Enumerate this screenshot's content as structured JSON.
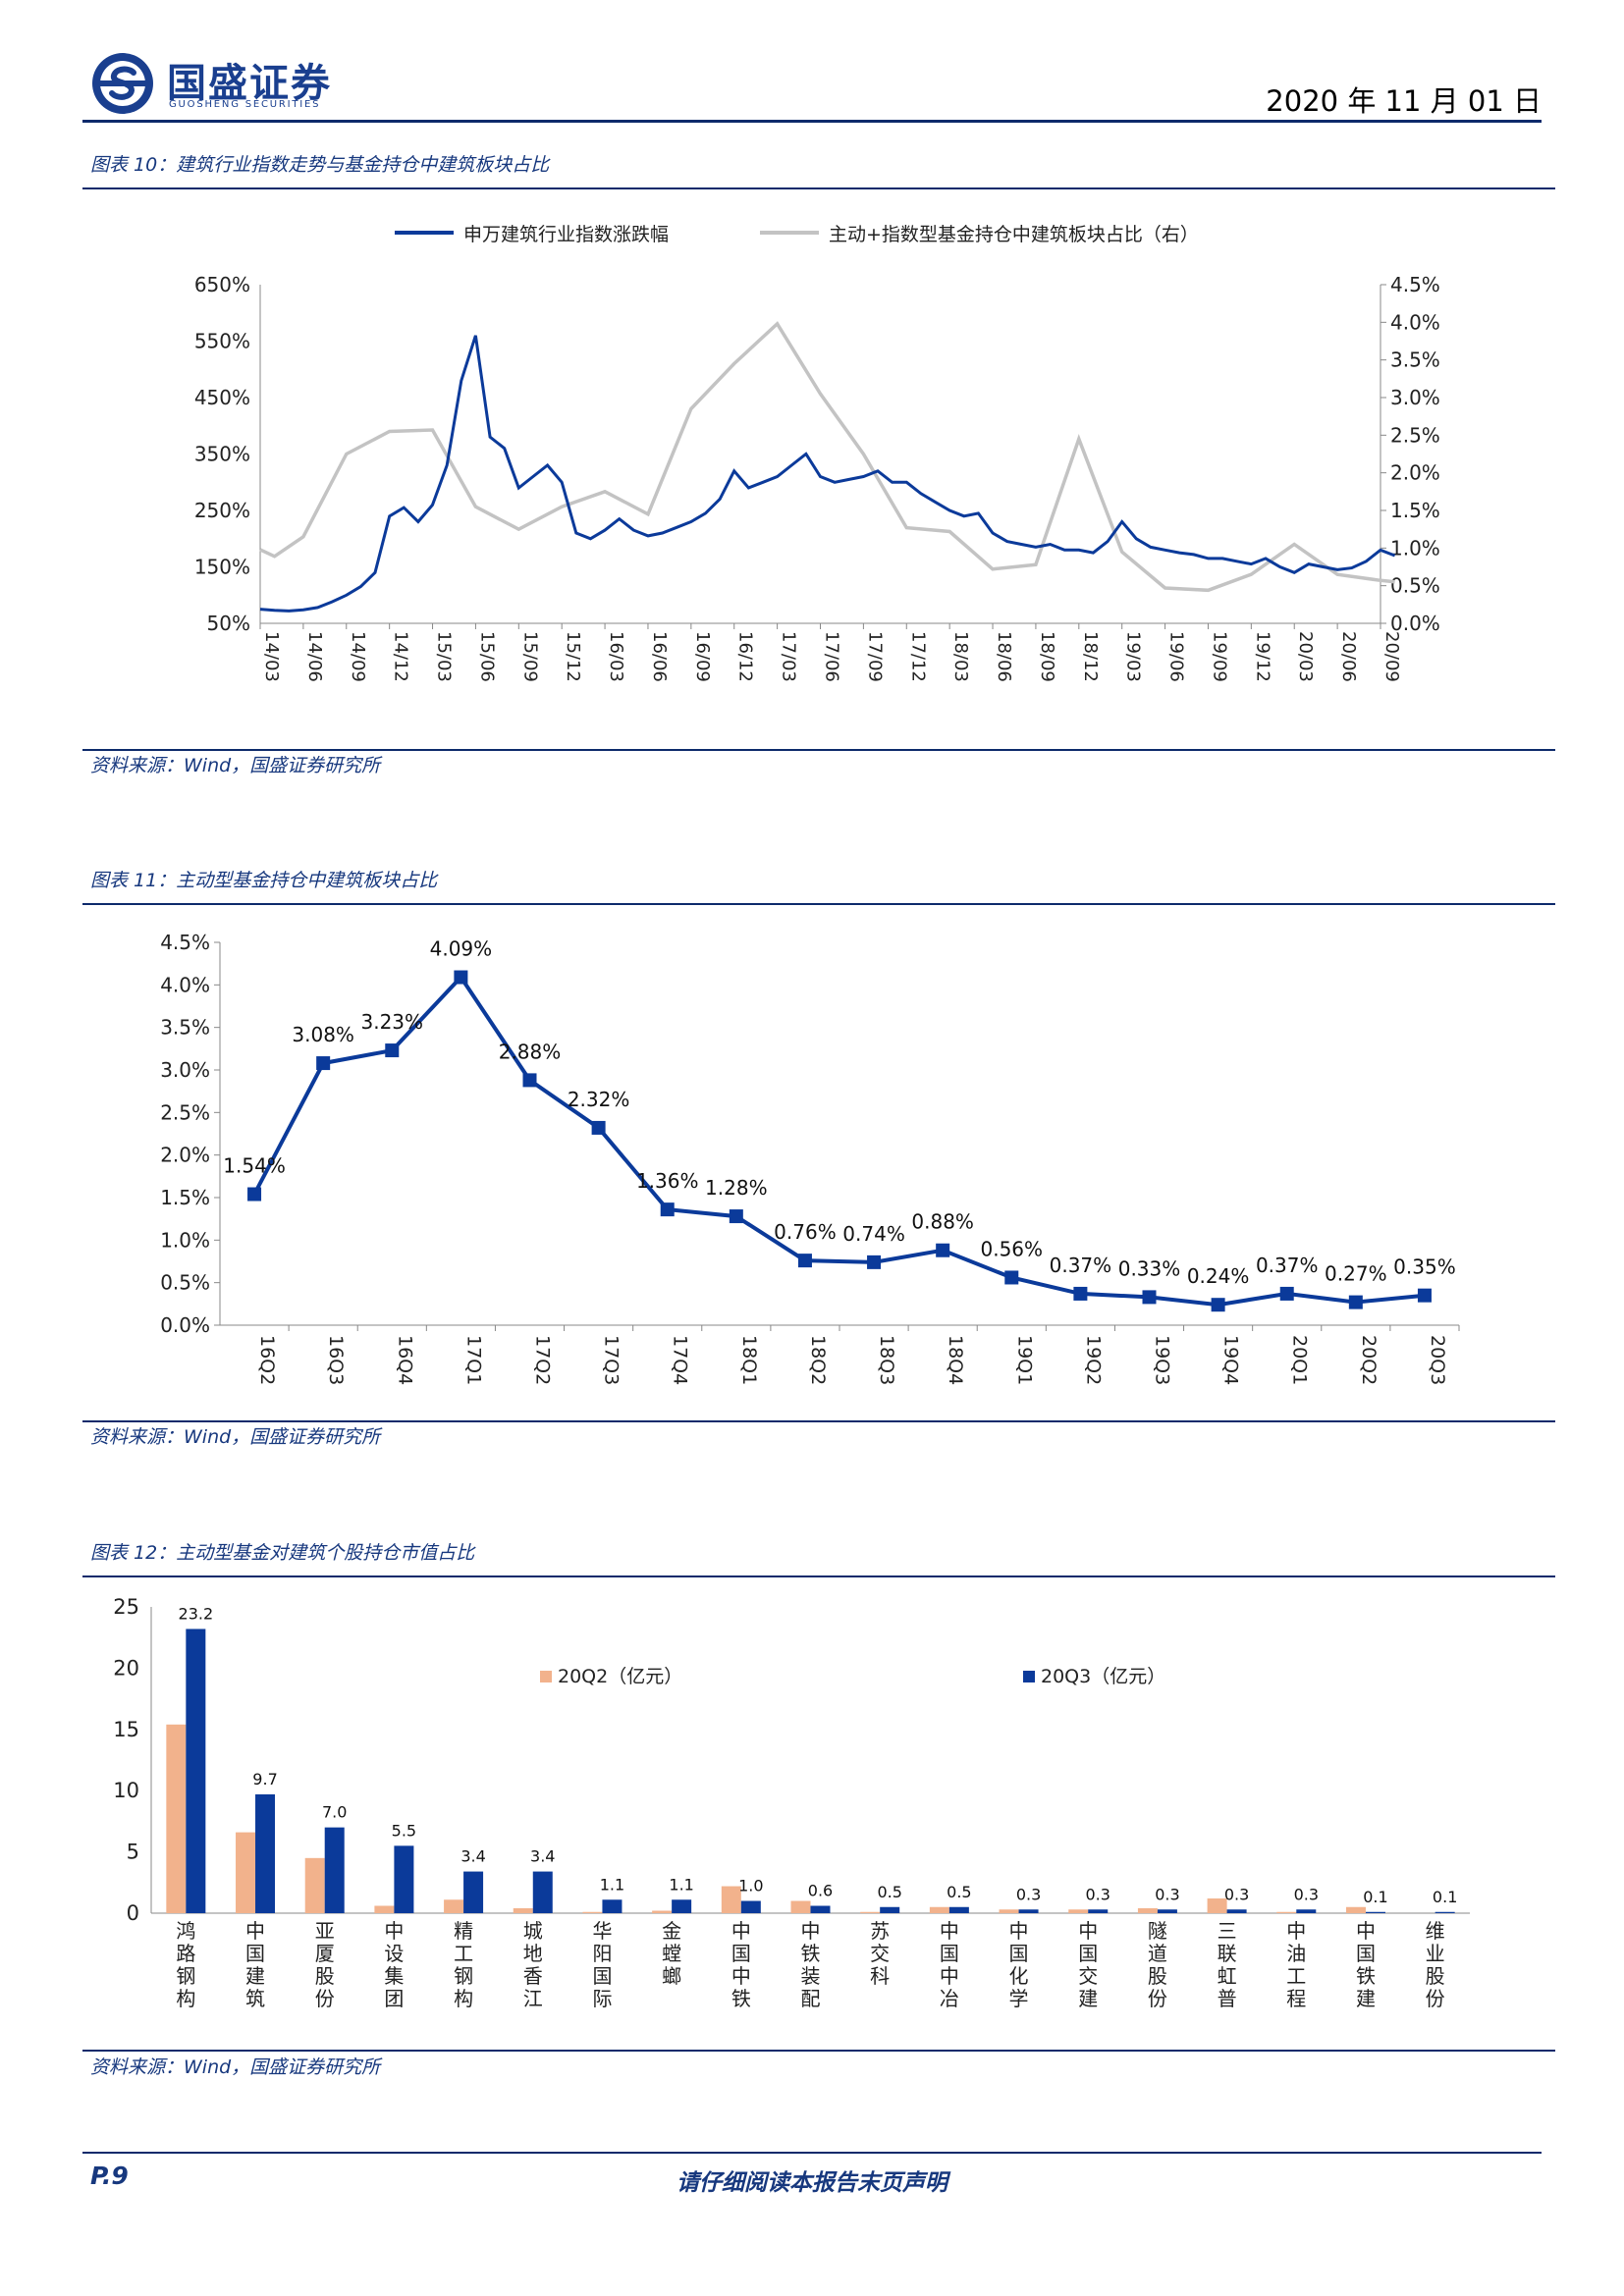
{
  "header": {
    "brand_cn": "国盛证券",
    "brand_en": "GUOSHENG SECURITIES",
    "date": "2020 年 11 月 01 日"
  },
  "colors": {
    "navy": "#0d2a6b",
    "series_blue": "#0b3a9a",
    "series_gray": "#c3c3c3",
    "bar_orange": "#f2b28c",
    "bar_blue": "#0b3a9a",
    "title_text": "#17387e"
  },
  "figures": [
    {
      "title": "图表 10：建筑行业指数走势与基金持仓中建筑板块占比",
      "source": "资料来源：Wind，国盛证券研究所"
    },
    {
      "title": "图表 11：主动型基金持仓中建筑板块占比",
      "source": "资料来源：Wind，国盛证券研究所"
    },
    {
      "title": "图表 12：主动型基金对建筑个股持仓市值占比",
      "source": "资料来源：Wind，国盛证券研究所"
    }
  ],
  "chart_data": [
    {
      "type": "line",
      "legend": [
        "申万建筑行业指数涨跌幅",
        "主动+指数型基金持仓中建筑板块占比（右）"
      ],
      "legend_position": "top",
      "x_ticks": [
        "14/03",
        "14/06",
        "14/09",
        "14/12",
        "15/03",
        "15/06",
        "15/09",
        "15/12",
        "16/03",
        "16/06",
        "16/09",
        "16/12",
        "17/03",
        "17/06",
        "17/09",
        "17/12",
        "18/03",
        "18/06",
        "18/09",
        "18/12",
        "19/03",
        "19/06",
        "19/09",
        "19/12",
        "20/03",
        "20/06",
        "20/09"
      ],
      "y_left": {
        "ticks": [
          "50%",
          "150%",
          "250%",
          "350%",
          "450%",
          "550%",
          "650%"
        ],
        "range": [
          50,
          650
        ]
      },
      "y_right": {
        "ticks": [
          "0.0%",
          "0.5%",
          "1.0%",
          "1.5%",
          "2.0%",
          "2.5%",
          "3.0%",
          "3.5%",
          "4.0%",
          "4.5%"
        ],
        "range": [
          0,
          4.5
        ]
      },
      "series": [
        {
          "name": "申万建筑行业指数涨跌幅",
          "axis": "left",
          "x": [
            "14/03",
            "14/04",
            "14/05",
            "14/06",
            "14/07",
            "14/08",
            "14/09",
            "14/10",
            "14/11",
            "14/12",
            "15/01",
            "15/02",
            "15/03",
            "15/04",
            "15/05",
            "15/06",
            "15/07",
            "15/08",
            "15/09",
            "15/10",
            "15/11",
            "15/12",
            "16/01",
            "16/02",
            "16/03",
            "16/04",
            "16/05",
            "16/06",
            "16/07",
            "16/08",
            "16/09",
            "16/10",
            "16/11",
            "16/12",
            "17/01",
            "17/02",
            "17/03",
            "17/04",
            "17/05",
            "17/06",
            "17/07",
            "17/08",
            "17/09",
            "17/10",
            "17/11",
            "17/12",
            "18/01",
            "18/02",
            "18/03",
            "18/04",
            "18/05",
            "18/06",
            "18/07",
            "18/08",
            "18/09",
            "18/10",
            "18/11",
            "18/12",
            "19/01",
            "19/02",
            "19/03",
            "19/04",
            "19/05",
            "19/06",
            "19/07",
            "19/08",
            "19/09",
            "19/10",
            "19/11",
            "19/12",
            "20/01",
            "20/02",
            "20/03",
            "20/04",
            "20/05",
            "20/06",
            "20/07",
            "20/08",
            "20/09",
            "20/10"
          ],
          "values": [
            75,
            73,
            72,
            74,
            78,
            88,
            100,
            115,
            140,
            240,
            255,
            230,
            260,
            330,
            480,
            560,
            380,
            360,
            290,
            310,
            330,
            300,
            210,
            200,
            215,
            235,
            215,
            205,
            210,
            220,
            230,
            245,
            270,
            320,
            290,
            300,
            310,
            330,
            350,
            310,
            300,
            305,
            310,
            320,
            300,
            300,
            280,
            265,
            250,
            240,
            245,
            210,
            195,
            190,
            185,
            190,
            180,
            180,
            175,
            195,
            230,
            200,
            185,
            180,
            175,
            172,
            165,
            165,
            160,
            155,
            165,
            150,
            140,
            155,
            150,
            145,
            148,
            160,
            180,
            170
          ]
        },
        {
          "name": "主动+指数型基金持仓中建筑板块占比（右）",
          "axis": "right",
          "x": [
            "14/03",
            "14/04",
            "14/06",
            "14/09",
            "14/12",
            "15/03",
            "15/06",
            "15/09",
            "15/12",
            "16/03",
            "16/06",
            "16/09",
            "16/12",
            "17/03",
            "17/06",
            "17/09",
            "17/12",
            "18/03",
            "18/06",
            "18/09",
            "18/12",
            "19/03",
            "19/06",
            "19/09",
            "19/12",
            "20/03",
            "20/06",
            "20/09",
            "20/10"
          ],
          "values": [
            0.98,
            0.89,
            1.15,
            2.25,
            2.55,
            2.57,
            1.55,
            1.25,
            1.55,
            1.75,
            1.45,
            2.85,
            3.45,
            3.98,
            3.05,
            2.25,
            1.27,
            1.22,
            0.72,
            0.78,
            2.45,
            0.95,
            0.47,
            0.44,
            0.65,
            1.05,
            0.65,
            0.57,
            0.55
          ]
        }
      ]
    },
    {
      "type": "line",
      "categories": [
        "16Q2",
        "16Q3",
        "16Q4",
        "17Q1",
        "17Q2",
        "17Q3",
        "17Q4",
        "18Q1",
        "18Q2",
        "18Q3",
        "18Q4",
        "19Q1",
        "19Q2",
        "19Q3",
        "19Q4",
        "20Q1",
        "20Q2",
        "20Q3"
      ],
      "values": [
        1.54,
        3.08,
        3.23,
        4.09,
        2.88,
        2.32,
        1.36,
        1.28,
        0.76,
        0.74,
        0.88,
        0.56,
        0.37,
        0.33,
        0.24,
        0.37,
        0.27,
        0.35
      ],
      "labels": [
        "1.54%",
        "3.08%",
        "3.23%",
        "4.09%",
        "2.88%",
        "2.32%",
        "1.36%",
        "1.28%",
        "0.76%",
        "0.74%",
        "0.88%",
        "0.56%",
        "0.37%",
        "0.33%",
        "0.24%",
        "0.37%",
        "0.27%",
        "0.35%"
      ],
      "y_ticks": [
        "0.0%",
        "0.5%",
        "1.0%",
        "1.5%",
        "2.0%",
        "2.5%",
        "3.0%",
        "3.5%",
        "4.0%",
        "4.5%"
      ],
      "ylim": [
        0,
        4.5
      ],
      "marker": "square"
    },
    {
      "type": "bar",
      "categories": [
        "鸿路钢构",
        "中国建筑",
        "亚厦股份",
        "中设集团",
        "精工钢构",
        "城地香江",
        "华阳国际",
        "金螳螂",
        "中国中铁",
        "中铁装配",
        "苏交科",
        "中国中冶",
        "中国化学",
        "中国交建",
        "隧道股份",
        "三联虹普",
        "中油工程",
        "中国铁建",
        "维业股份"
      ],
      "series": [
        {
          "name": "20Q2（亿元）",
          "values": [
            15.4,
            6.6,
            4.5,
            0.6,
            1.1,
            0.4,
            0.1,
            0.2,
            2.2,
            1.0,
            0.1,
            0.5,
            0.3,
            0.3,
            0.4,
            1.2,
            0.1,
            0.5,
            0.0
          ]
        },
        {
          "name": "20Q3（亿元）",
          "values": [
            23.2,
            9.7,
            7.0,
            5.5,
            3.4,
            3.4,
            1.1,
            1.1,
            1.0,
            0.6,
            0.5,
            0.5,
            0.3,
            0.3,
            0.3,
            0.3,
            0.3,
            0.1,
            0.1
          ]
        }
      ],
      "labels": [
        "23.2",
        "9.7",
        "7.0",
        "5.5",
        "3.4",
        "3.4",
        "1.1",
        "1.1",
        "1.0",
        "0.6",
        "0.5",
        "0.5",
        "0.3",
        "0.3",
        "0.3",
        "0.3",
        "0.3",
        "0.1",
        "0.1"
      ],
      "y_ticks": [
        "0",
        "5",
        "10",
        "15",
        "20",
        "25"
      ],
      "ylim": [
        0,
        25
      ],
      "legend_position": "top"
    }
  ],
  "footer": {
    "page": "P.9",
    "note": "请仔细阅读本报告末页声明"
  }
}
